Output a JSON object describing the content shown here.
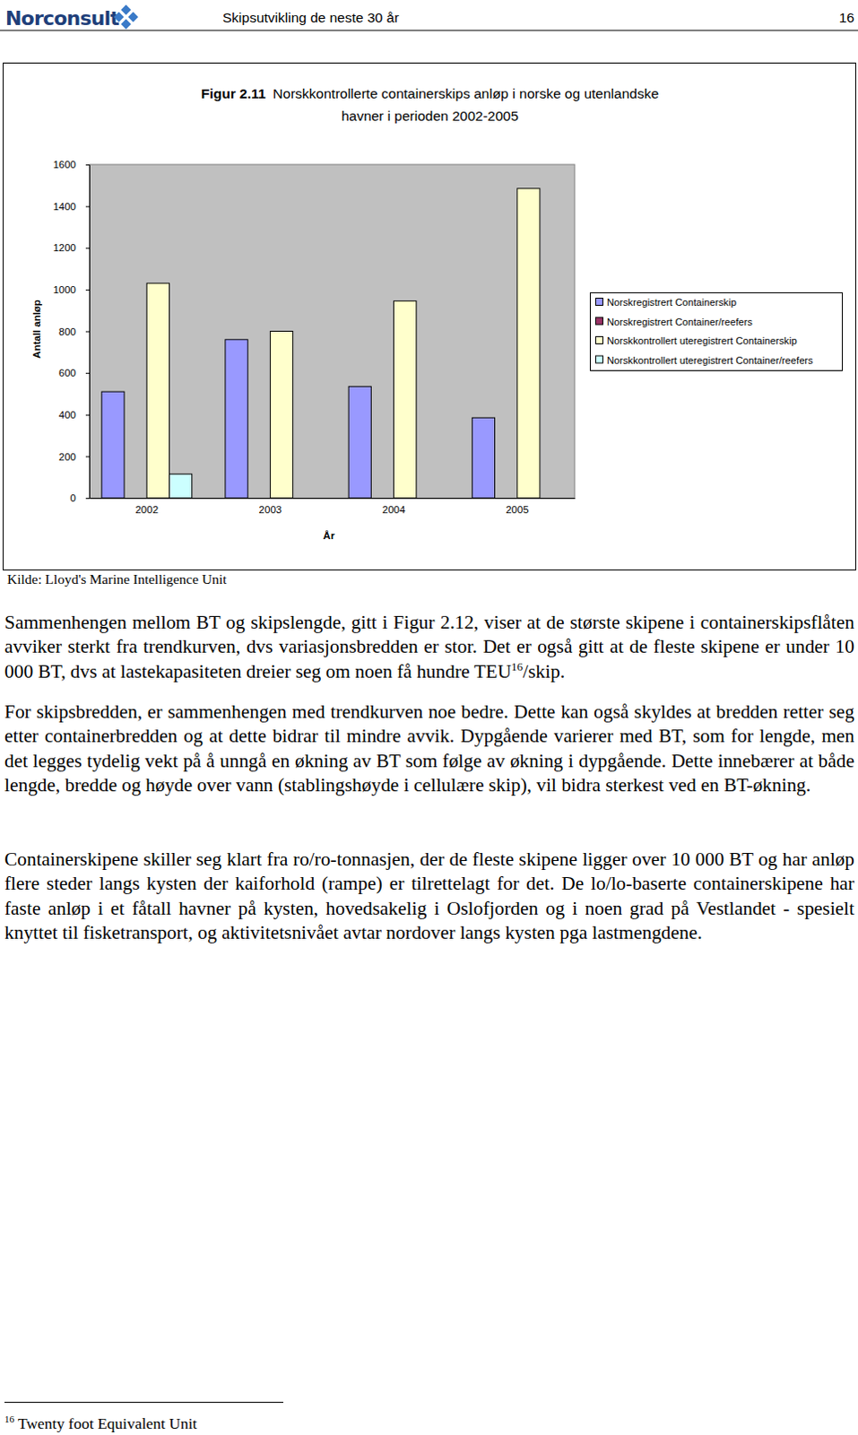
{
  "document": {
    "header": {
      "logo": "Norconsult",
      "title": "Skipsutvikling de neste 30 år",
      "page": "16"
    },
    "figure_label": "Figur 2.11",
    "source": "Kilde: Lloyd's Marine Intelligence Unit",
    "paragraphs": [
      {
        "text": "Sammenhengen mellom BT og skipslengde, gitt i Figur 2.12, viser at de største skipene i containerskipsflåten avviker sterkt fra trendkurven, dvs variasjonsbredden er stor. Det er også gitt at de fleste skipene er under 10 000 BT, dvs at lastekapasiteten dreier seg om noen få hundre TEU",
        "sup": "16",
        "after": "/skip."
      },
      {
        "text": "For skipsbredden, er sammenhengen med trendkurven noe bedre. Dette kan også skyldes at bredden retter seg etter containerbredden og at dette bidrar til mindre avvik. Dypgående varierer med BT, som for lengde, men det legges tydelig vekt på å unngå en økning av BT som følge av økning i dypgående. Dette innebærer at både lengde, bredde og høyde over vann (stablingshøyde i cellulære skip), vil bidra sterkest ved en BT-økning."
      },
      {
        "text": "Containerskipene skiller seg klart fra ro/ro-tonnasjen, der de fleste skipene ligger over 10 000 BT og har anløp flere steder langs kysten der kaiforhold (rampe) er tilrettelagt for det. De lo/lo-baserte containerskipene har faste anløp i et fåtall havner på kysten, hovedsakelig i Oslofjorden og i noen grad på Vestlandet - spesielt knyttet til fisketransport, og aktivitetsnivået avtar nordover langs kysten pga lastmengdene."
      }
    ],
    "footnote": {
      "mark": "16",
      "text": "Twenty foot Equivalent Unit"
    }
  },
  "chart_data": {
    "type": "bar",
    "title": [
      "Norskkontrollerte containerskips anløp i norske og utenlandske",
      "havner i perioden 2002-2005"
    ],
    "x_label": "År",
    "y_label": "Antall anløp",
    "categories": [
      "2002",
      "2003",
      "2004",
      "2005"
    ],
    "series": [
      {
        "name": "Norskregistrert Containerskip",
        "color": "#9999ff",
        "values": [
          510,
          760,
          535,
          385
        ]
      },
      {
        "name": "Norskregistrert Container/reefers",
        "color": "#993366",
        "values": [
          null,
          null,
          null,
          null
        ]
      },
      {
        "name": "Norskkontrollert uteregistrert Containerskip",
        "color": "#ffffcc",
        "values": [
          1030,
          800,
          945,
          1485
        ]
      },
      {
        "name": "Norskkontrollert uteregistrert Container/reefers",
        "color": "#ccffff",
        "values": [
          115,
          null,
          null,
          null
        ]
      }
    ],
    "ylim": [
      0,
      1600
    ],
    "yticks": [
      0,
      200,
      400,
      600,
      800,
      1000,
      1200,
      1400,
      1600
    ],
    "grid": false,
    "legend": "right"
  }
}
